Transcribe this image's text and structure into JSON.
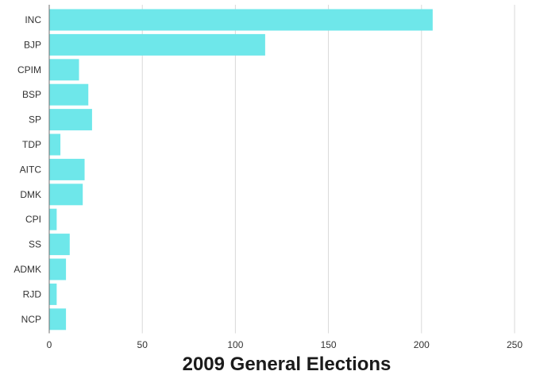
{
  "chart_data": {
    "type": "bar",
    "orientation": "horizontal",
    "title": "2009 General Elections",
    "xlabel": "",
    "ylabel": "",
    "categories": [
      "INC",
      "BJP",
      "CPIM",
      "BSP",
      "SP",
      "TDP",
      "AITC",
      "DMK",
      "CPI",
      "SS",
      "ADMK",
      "RJD",
      "NCP"
    ],
    "values": [
      206,
      116,
      16,
      21,
      23,
      6,
      19,
      18,
      4,
      11,
      9,
      4,
      9
    ],
    "xlim": [
      0,
      250
    ],
    "xticks": [
      "0",
      "50",
      "100",
      "150",
      "200",
      "250"
    ],
    "grid": "vertical",
    "bar_color": "#6ee7ea",
    "legend": "none"
  }
}
